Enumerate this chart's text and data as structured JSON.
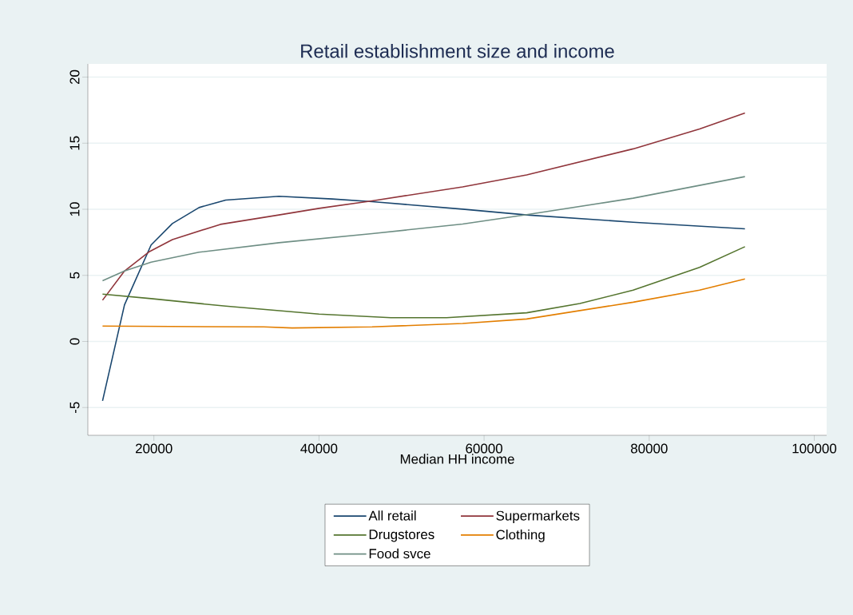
{
  "chart_data": {
    "type": "line",
    "title": "Retail establishment size and income",
    "xlabel": "Median HH income",
    "xlim": [
      12000,
      101500
    ],
    "xticks": [
      20000,
      40000,
      60000,
      80000,
      100000
    ],
    "ylim": [
      -7.1,
      21
    ],
    "yticks": [
      -5,
      0,
      5,
      10,
      15,
      20
    ],
    "grid": "y",
    "legend": "bottom",
    "marker": "none",
    "line_style": "solid",
    "series": [
      {
        "name": "All retail",
        "color": "#1a476f",
        "x": [
          13780,
          16440,
          19660,
          22240,
          25470,
          28700,
          35150,
          41600,
          46440,
          57400,
          65160,
          78060,
          91600
        ],
        "values": [
          -4.49,
          2.77,
          7.3,
          8.92,
          10.13,
          10.7,
          10.98,
          10.78,
          10.58,
          10.01,
          9.57,
          9.02,
          8.52
        ]
      },
      {
        "name": "Supermarkets",
        "color": "#90353b",
        "x": [
          13780,
          16440,
          19470,
          22240,
          28060,
          35150,
          40000,
          46440,
          57400,
          65160,
          78060,
          86100,
          91600
        ],
        "values": [
          3.12,
          5.33,
          6.8,
          7.71,
          8.86,
          9.57,
          10.07,
          10.64,
          11.69,
          12.6,
          14.57,
          16.08,
          17.29
        ]
      },
      {
        "name": "Drugstores",
        "color": "#55752f",
        "x": [
          13780,
          19660,
          28700,
          40000,
          48700,
          55460,
          65160,
          71600,
          78060,
          86100,
          91600
        ],
        "values": [
          3.58,
          3.24,
          2.67,
          2.07,
          1.8,
          1.8,
          2.17,
          2.87,
          3.88,
          5.6,
          7.17
        ]
      },
      {
        "name": "Clothing",
        "color": "#e37e00",
        "x": [
          13780,
          33300,
          36750,
          46440,
          57400,
          65160,
          78060,
          86100,
          91600
        ],
        "values": [
          1.16,
          1.1,
          1.02,
          1.1,
          1.36,
          1.7,
          2.97,
          3.88,
          4.73
        ]
      },
      {
        "name": "Food svce",
        "color": "#6e8e84",
        "x": [
          13780,
          16440,
          19660,
          25470,
          35150,
          46440,
          57400,
          65160,
          78060,
          91600
        ],
        "values": [
          4.59,
          5.33,
          6.0,
          6.75,
          7.47,
          8.16,
          8.88,
          9.59,
          10.84,
          12.47
        ]
      }
    ]
  }
}
